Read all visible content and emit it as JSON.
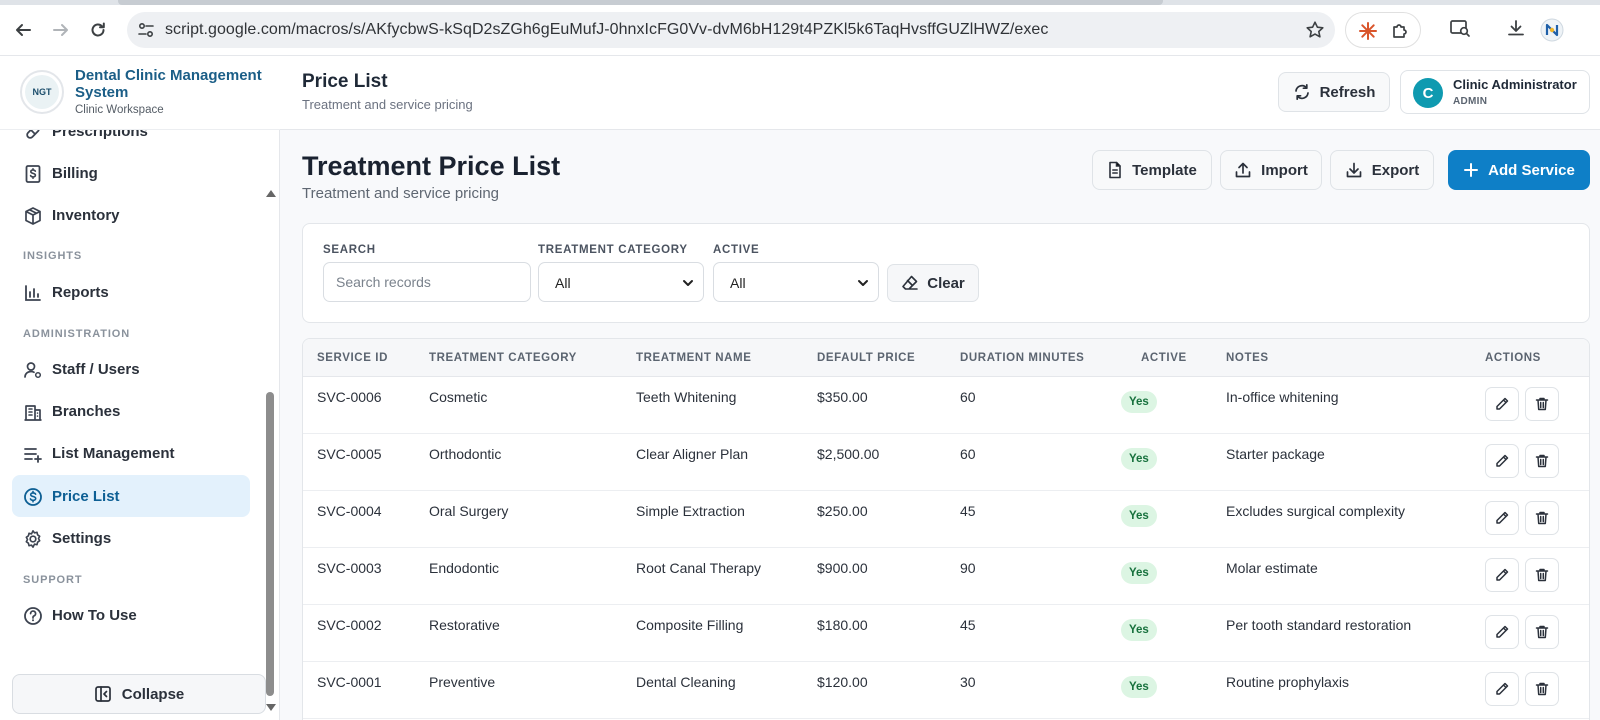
{
  "browser": {
    "url": "script.google.com/macros/s/AKfycbwS-kSqD2sZGh6gEuMufJ-0hnxIcFG0Vv-dvM6bH129t4PZKl5k6TaqHvsffGUZlHWZ/exec"
  },
  "sidebar": {
    "brand_title": "Dental Clinic Management System",
    "brand_sub": "Clinic Workspace",
    "logo_text": "NGT",
    "items": {
      "prescriptions": "Prescriptions",
      "billing": "Billing",
      "inventory": "Inventory",
      "reports": "Reports",
      "staff": "Staff / Users",
      "branches": "Branches",
      "list_management": "List Management",
      "price_list": "Price List",
      "settings": "Settings",
      "how_to_use": "How To Use"
    },
    "sections": {
      "insights": "INSIGHTS",
      "administration": "ADMINISTRATION",
      "support": "SUPPORT"
    },
    "collapse_label": "Collapse",
    "active_item": "price_list"
  },
  "header": {
    "title": "Price List",
    "subtitle": "Treatment and service pricing",
    "refresh_label": "Refresh",
    "user": {
      "initial": "C",
      "name": "Clinic Administrator",
      "role": "ADMIN"
    }
  },
  "main": {
    "title": "Treatment Price List",
    "subtitle": "Treatment and service pricing",
    "buttons": {
      "template": "Template",
      "import": "Import",
      "export": "Export",
      "add": "Add Service"
    }
  },
  "filters": {
    "search_label": "SEARCH",
    "search_placeholder": "Search records",
    "search_value": "",
    "category_label": "TREATMENT CATEGORY",
    "category_value": "All",
    "active_label": "ACTIVE",
    "active_value": "All",
    "clear_label": "Clear"
  },
  "table": {
    "headers": {
      "service_id": "SERVICE ID",
      "category": "TREATMENT CATEGORY",
      "name": "TREATMENT NAME",
      "price": "DEFAULT PRICE",
      "duration": "DURATION MINUTES",
      "active": "ACTIVE",
      "notes": "NOTES",
      "actions": "ACTIONS"
    },
    "rows": [
      {
        "service_id": "SVC-0006",
        "category": "Cosmetic",
        "name": "Teeth Whitening",
        "price": "$350.00",
        "duration": "60",
        "active": "Yes",
        "notes": "In-office whitening"
      },
      {
        "service_id": "SVC-0005",
        "category": "Orthodontic",
        "name": "Clear Aligner Plan",
        "price": "$2,500.00",
        "duration": "60",
        "active": "Yes",
        "notes": "Starter package"
      },
      {
        "service_id": "SVC-0004",
        "category": "Oral Surgery",
        "name": "Simple Extraction",
        "price": "$250.00",
        "duration": "45",
        "active": "Yes",
        "notes": "Excludes surgical complexity"
      },
      {
        "service_id": "SVC-0003",
        "category": "Endodontic",
        "name": "Root Canal Therapy",
        "price": "$900.00",
        "duration": "90",
        "active": "Yes",
        "notes": "Molar estimate"
      },
      {
        "service_id": "SVC-0002",
        "category": "Restorative",
        "name": "Composite Filling",
        "price": "$180.00",
        "duration": "45",
        "active": "Yes",
        "notes": "Per tooth standard restoration"
      },
      {
        "service_id": "SVC-0001",
        "category": "Preventive",
        "name": "Dental Cleaning",
        "price": "$120.00",
        "duration": "30",
        "active": "Yes",
        "notes": "Routine prophylaxis"
      }
    ]
  },
  "colors": {
    "accent": "#0e7fc7",
    "brand": "#1b5e87",
    "active_nav_bg": "#e3f1fc",
    "badge_bg": "#dcf5e3",
    "badge_text": "#17713d",
    "avatar": "#0f9ab0"
  },
  "icons": {
    "back": "arrow-left-icon",
    "forward": "arrow-right-icon",
    "reload": "reload-icon",
    "site_settings": "tune-icon",
    "bookmark": "star-icon",
    "refresh": "refresh-icon",
    "template": "document-icon",
    "import": "upload-icon",
    "export": "download-icon",
    "add": "plus-icon",
    "clear": "eraser-icon",
    "edit": "pencil-icon",
    "delete": "trash-icon"
  }
}
